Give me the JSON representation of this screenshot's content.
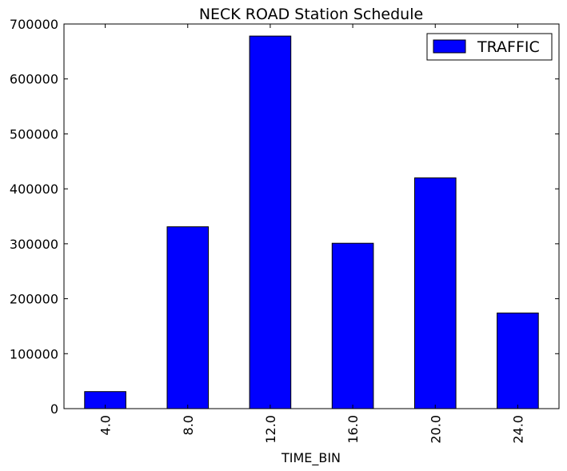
{
  "chart_data": {
    "type": "bar",
    "title": "NECK ROAD Station Schedule",
    "xlabel": "TIME_BIN",
    "ylabel": "",
    "categories": [
      "4.0",
      "8.0",
      "12.0",
      "16.0",
      "20.0",
      "24.0"
    ],
    "series": [
      {
        "name": "TRAFFIC",
        "values": [
          31000,
          331000,
          678000,
          301000,
          420000,
          174000
        ]
      }
    ],
    "ylim": [
      0,
      700000
    ],
    "yticks": [
      "0",
      "100000",
      "200000",
      "300000",
      "400000",
      "500000",
      "600000",
      "700000"
    ],
    "ytick_values": [
      0,
      100000,
      200000,
      300000,
      400000,
      500000,
      600000,
      700000
    ],
    "grid": false,
    "legend_position": "top-right",
    "colors": {
      "bar": "#0000ff",
      "edge": "#000000"
    }
  }
}
